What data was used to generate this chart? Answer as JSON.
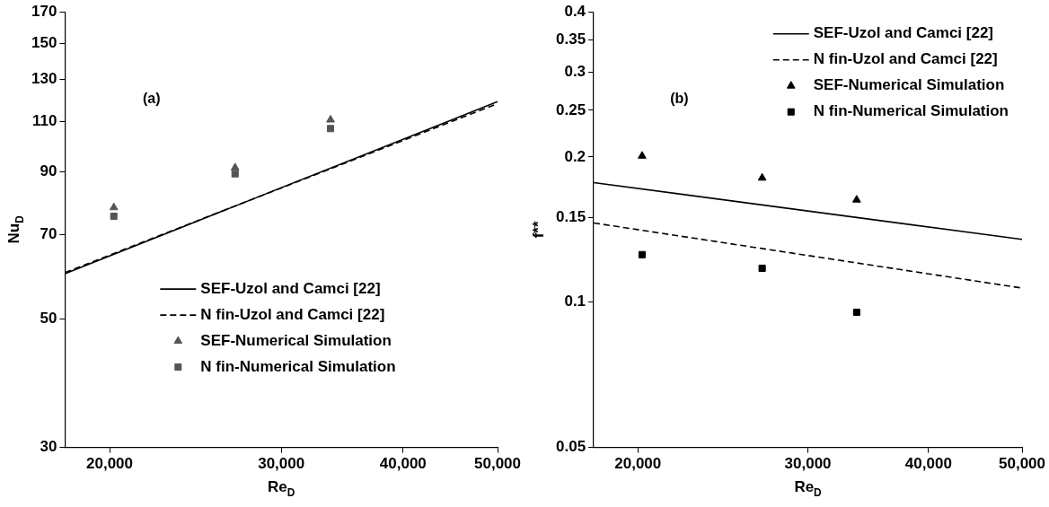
{
  "chart_data": [
    {
      "type": "scatter",
      "xlabel": "Re$_{D}$",
      "ylabel": "Nu$_{D}$",
      "annotations": [
        "(a)"
      ],
      "log": "xy",
      "xlim": [
        18000,
        50000
      ],
      "xticks": [
        {
          "value": 20000,
          "label": "20,000"
        },
        {
          "value": 30000,
          "label": "30,000"
        },
        {
          "value": 40000,
          "label": "40,000"
        },
        {
          "value": 50000,
          "label": "50,000"
        }
      ],
      "ylim": [
        30,
        170
      ],
      "yticks": [
        30,
        50,
        70,
        90,
        110,
        130,
        150,
        170
      ],
      "grid": false,
      "legend": "bottom right",
      "series": [
        {
          "name": "SEF-Uzol and Camci [22]",
          "type": "line",
          "line_style": "solid",
          "marker": "none",
          "color": "#000000",
          "x": [
            18000,
            50000
          ],
          "values": [
            59.9,
            118.9
          ]
        },
        {
          "name": "N fin-Uzol and Camci [22]",
          "type": "line",
          "line_style": "dashed",
          "marker": "none",
          "color": "#000000",
          "x": [
            18000,
            50000
          ],
          "values": [
            60.2,
            118
          ]
        },
        {
          "name": "SEF-Numerical Simulation",
          "type": "scatter",
          "marker": "triangle",
          "color": "#555555",
          "x": [
            20200,
            26900,
            33700
          ],
          "values": [
            78,
            91.4,
            110.6
          ]
        },
        {
          "name": "N fin-Numerical Simulation",
          "type": "scatter",
          "marker": "square",
          "color": "#555555",
          "x": [
            20200,
            26900,
            33700
          ],
          "values": [
            75.3,
            89.2,
            106.8
          ]
        }
      ]
    },
    {
      "type": "scatter",
      "xlabel": "Re$_{D}$",
      "ylabel": "f**",
      "annotations": [
        "(b)"
      ],
      "log": "xy",
      "xlim": [
        18000,
        50000
      ],
      "xticks": [
        {
          "value": 20000,
          "label": "20,000"
        },
        {
          "value": 30000,
          "label": "30,000"
        },
        {
          "value": 40000,
          "label": "40,000"
        },
        {
          "value": 50000,
          "label": "50,000"
        }
      ],
      "ylim": [
        0.05,
        0.4
      ],
      "yticks": [
        0.05,
        0.1,
        0.15,
        0.2,
        0.25,
        0.3,
        0.35,
        0.4
      ],
      "grid": false,
      "legend": "top right",
      "series": [
        {
          "name": "SEF-Uzol and Camci [22]",
          "type": "line",
          "line_style": "solid",
          "marker": "none",
          "color": "#000000",
          "x": [
            18000,
            50000
          ],
          "values": [
            0.177,
            0.135
          ]
        },
        {
          "name": "N fin-Uzol and Camci [22]",
          "type": "line",
          "line_style": "dashed",
          "marker": "none",
          "color": "#000000",
          "x": [
            18000,
            50000
          ],
          "values": [
            0.146,
            0.107
          ]
        },
        {
          "name": "SEF-Numerical Simulation",
          "type": "scatter",
          "marker": "triangle",
          "color": "#000000",
          "x": [
            20200,
            26900,
            33700
          ],
          "values": [
            0.201,
            0.181,
            0.163
          ]
        },
        {
          "name": "N fin-Numerical Simulation",
          "type": "scatter",
          "marker": "square",
          "color": "#000000",
          "x": [
            20200,
            26900,
            33700
          ],
          "values": [
            0.1255,
            0.1176,
            0.0953
          ]
        }
      ]
    }
  ]
}
